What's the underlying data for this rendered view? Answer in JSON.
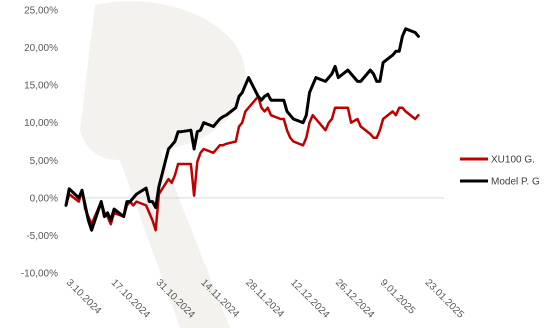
{
  "chart_data": {
    "type": "line",
    "title": "",
    "xlabel": "",
    "ylabel": "",
    "ylim": [
      -10,
      25
    ],
    "yticks": [
      -10,
      -5,
      0,
      5,
      10,
      15,
      20,
      25
    ],
    "ytick_labels": [
      "-10,00%",
      "-5,00%",
      "0,00%",
      "5,00%",
      "10,00%",
      "15,00%",
      "20,00%",
      "25,00%"
    ],
    "xlim": [
      "2024-10-03",
      "2025-01-29"
    ],
    "xtick_labels": [
      "3.10.2024",
      "17.10.2024",
      "31.10.2024",
      "14.11.2024",
      "28.11.2024",
      "12.12.2024",
      "26.12.2024",
      "9.01.2025",
      "23.01.2025"
    ],
    "xtick_dates": [
      "2024-10-03",
      "2024-10-17",
      "2024-10-31",
      "2024-11-14",
      "2024-11-28",
      "2024-12-12",
      "2024-12-26",
      "2025-01-09",
      "2025-01-23"
    ],
    "grid": false,
    "legend_position": "right",
    "series": [
      {
        "name": "XU100 G.",
        "color": "#c00000",
        "points": [
          [
            "2024-10-03",
            -1.0
          ],
          [
            "2024-10-04",
            0.5
          ],
          [
            "2024-10-07",
            -0.5
          ],
          [
            "2024-10-08",
            1.0
          ],
          [
            "2024-10-09",
            -1.5
          ],
          [
            "2024-10-10",
            -2.5
          ],
          [
            "2024-10-11",
            -3.5
          ],
          [
            "2024-10-14",
            -0.5
          ],
          [
            "2024-10-15",
            -2.0
          ],
          [
            "2024-10-16",
            -2.5
          ],
          [
            "2024-10-17",
            -3.5
          ],
          [
            "2024-10-18",
            -2.0
          ],
          [
            "2024-10-21",
            -2.5
          ],
          [
            "2024-10-22",
            -1.0
          ],
          [
            "2024-10-23",
            -0.5
          ],
          [
            "2024-10-24",
            -1.0
          ],
          [
            "2024-10-25",
            -0.5
          ],
          [
            "2024-10-28",
            -1.0
          ],
          [
            "2024-10-29",
            -2.0
          ],
          [
            "2024-10-30",
            -3.0
          ],
          [
            "2024-10-31",
            -4.3
          ],
          [
            "2024-11-01",
            0.5
          ],
          [
            "2024-11-04",
            2.5
          ],
          [
            "2024-11-05",
            2.0
          ],
          [
            "2024-11-06",
            3.0
          ],
          [
            "2024-11-07",
            4.5
          ],
          [
            "2024-11-08",
            4.5
          ],
          [
            "2024-11-11",
            4.5
          ],
          [
            "2024-11-12",
            0.3
          ],
          [
            "2024-11-13",
            4.8
          ],
          [
            "2024-11-14",
            6.0
          ],
          [
            "2024-11-15",
            6.5
          ],
          [
            "2024-11-18",
            6.0
          ],
          [
            "2024-11-19",
            6.5
          ],
          [
            "2024-11-20",
            7.0
          ],
          [
            "2024-11-21",
            7.0
          ],
          [
            "2024-11-22",
            7.2
          ],
          [
            "2024-11-25",
            7.5
          ],
          [
            "2024-11-26",
            9.5
          ],
          [
            "2024-11-27",
            10.0
          ],
          [
            "2024-11-28",
            11.5
          ],
          [
            "2024-11-29",
            12.0
          ],
          [
            "2024-12-02",
            13.5
          ],
          [
            "2024-12-03",
            12.0
          ],
          [
            "2024-12-04",
            11.5
          ],
          [
            "2024-12-05",
            12.0
          ],
          [
            "2024-12-06",
            11.0
          ],
          [
            "2024-12-09",
            10.5
          ],
          [
            "2024-12-10",
            10.5
          ],
          [
            "2024-12-11",
            9.0
          ],
          [
            "2024-12-12",
            8.0
          ],
          [
            "2024-12-13",
            7.5
          ],
          [
            "2024-12-16",
            7.0
          ],
          [
            "2024-12-17",
            8.0
          ],
          [
            "2024-12-18",
            10.0
          ],
          [
            "2024-12-19",
            11.0
          ],
          [
            "2024-12-20",
            10.5
          ],
          [
            "2024-12-23",
            9.0
          ],
          [
            "2024-12-24",
            10.0
          ],
          [
            "2024-12-25",
            10.5
          ],
          [
            "2024-12-26",
            12.0
          ],
          [
            "2024-12-27",
            12.0
          ],
          [
            "2024-12-30",
            12.0
          ],
          [
            "2024-12-31",
            10.0
          ],
          [
            "2025-01-02",
            10.5
          ],
          [
            "2025-01-03",
            9.5
          ],
          [
            "2025-01-06",
            8.5
          ],
          [
            "2025-01-07",
            8.0
          ],
          [
            "2025-01-08",
            8.0
          ],
          [
            "2025-01-09",
            9.0
          ],
          [
            "2025-01-10",
            10.5
          ],
          [
            "2025-01-13",
            11.5
          ],
          [
            "2025-01-14",
            11.0
          ],
          [
            "2025-01-15",
            12.0
          ],
          [
            "2025-01-16",
            12.0
          ],
          [
            "2025-01-17",
            11.5
          ],
          [
            "2025-01-20",
            10.5
          ],
          [
            "2025-01-21",
            11.0
          ]
        ]
      },
      {
        "name": "Model P. G",
        "color": "#000000",
        "points": [
          [
            "2024-10-03",
            -1.0
          ],
          [
            "2024-10-04",
            1.2
          ],
          [
            "2024-10-07",
            0.0
          ],
          [
            "2024-10-08",
            1.0
          ],
          [
            "2024-10-09",
            -1.0
          ],
          [
            "2024-10-10",
            -3.0
          ],
          [
            "2024-10-11",
            -4.3
          ],
          [
            "2024-10-14",
            -0.5
          ],
          [
            "2024-10-15",
            -2.5
          ],
          [
            "2024-10-16",
            -2.0
          ],
          [
            "2024-10-17",
            -3.0
          ],
          [
            "2024-10-18",
            -1.5
          ],
          [
            "2024-10-21",
            -2.5
          ],
          [
            "2024-10-22",
            -0.5
          ],
          [
            "2024-10-23",
            -0.5
          ],
          [
            "2024-10-24",
            0.0
          ],
          [
            "2024-10-25",
            0.5
          ],
          [
            "2024-10-28",
            1.3
          ],
          [
            "2024-10-29",
            -0.5
          ],
          [
            "2024-10-30",
            -0.5
          ],
          [
            "2024-10-31",
            -1.3
          ],
          [
            "2024-11-01",
            1.5
          ],
          [
            "2024-11-04",
            6.5
          ],
          [
            "2024-11-05",
            7.0
          ],
          [
            "2024-11-06",
            7.5
          ],
          [
            "2024-11-07",
            8.8
          ],
          [
            "2024-11-08",
            8.8
          ],
          [
            "2024-11-11",
            9.0
          ],
          [
            "2024-11-12",
            6.5
          ],
          [
            "2024-11-13",
            8.8
          ],
          [
            "2024-11-14",
            9.0
          ],
          [
            "2024-11-15",
            10.0
          ],
          [
            "2024-11-18",
            9.5
          ],
          [
            "2024-11-19",
            10.0
          ],
          [
            "2024-11-20",
            10.5
          ],
          [
            "2024-11-21",
            10.8
          ],
          [
            "2024-11-22",
            11.0
          ],
          [
            "2024-11-25",
            12.0
          ],
          [
            "2024-11-26",
            13.5
          ],
          [
            "2024-11-27",
            14.0
          ],
          [
            "2024-11-28",
            15.0
          ],
          [
            "2024-11-29",
            16.0
          ],
          [
            "2024-12-02",
            13.5
          ],
          [
            "2024-12-03",
            13.0
          ],
          [
            "2024-12-04",
            13.5
          ],
          [
            "2024-12-05",
            13.8
          ],
          [
            "2024-12-06",
            13.0
          ],
          [
            "2024-12-09",
            13.0
          ],
          [
            "2024-12-10",
            13.0
          ],
          [
            "2024-12-11",
            11.5
          ],
          [
            "2024-12-12",
            11.0
          ],
          [
            "2024-12-13",
            10.5
          ],
          [
            "2024-12-16",
            10.0
          ],
          [
            "2024-12-17",
            11.0
          ],
          [
            "2024-12-18",
            14.0
          ],
          [
            "2024-12-19",
            15.0
          ],
          [
            "2024-12-20",
            16.0
          ],
          [
            "2024-12-23",
            15.5
          ],
          [
            "2024-12-24",
            16.0
          ],
          [
            "2024-12-25",
            16.5
          ],
          [
            "2024-12-26",
            17.5
          ],
          [
            "2024-12-27",
            16.0
          ],
          [
            "2024-12-30",
            17.0
          ],
          [
            "2024-12-31",
            16.5
          ],
          [
            "2025-01-02",
            15.5
          ],
          [
            "2025-01-03",
            15.5
          ],
          [
            "2025-01-06",
            17.0
          ],
          [
            "2025-01-07",
            16.5
          ],
          [
            "2025-01-08",
            15.5
          ],
          [
            "2025-01-09",
            15.5
          ],
          [
            "2025-01-10",
            18.0
          ],
          [
            "2025-01-13",
            19.0
          ],
          [
            "2025-01-14",
            19.5
          ],
          [
            "2025-01-15",
            19.5
          ],
          [
            "2025-01-16",
            21.5
          ],
          [
            "2025-01-17",
            22.5
          ],
          [
            "2025-01-20",
            22.0
          ],
          [
            "2025-01-21",
            21.5
          ]
        ]
      }
    ]
  }
}
